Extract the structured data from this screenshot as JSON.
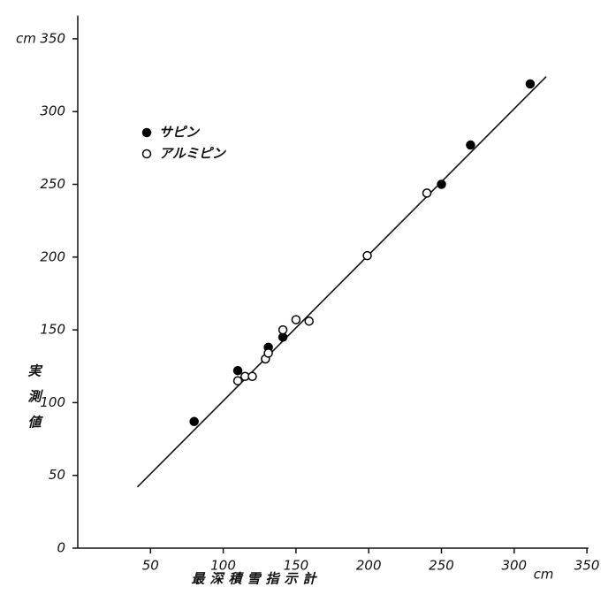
{
  "chart_data": {
    "type": "scatter",
    "y_unit": "cm",
    "x_unit": "cm",
    "x_label": "最深積雪指示計",
    "y_label": "実測値",
    "xlim": [
      0,
      351
    ],
    "ylim": [
      0,
      366
    ],
    "xticks": [
      50,
      100,
      150,
      200,
      250,
      300,
      350
    ],
    "yticks": [
      0,
      50,
      100,
      150,
      200,
      250,
      300,
      350
    ],
    "legend": "top-left",
    "series": [
      {
        "name": "サピン",
        "color": "#000000",
        "filled": true,
        "x": [
          80,
          110,
          131,
          141,
          250,
          270,
          311
        ],
        "values": [
          87,
          122,
          138,
          145,
          250,
          277,
          319
        ]
      },
      {
        "name": "アルミピン",
        "color": "#000000",
        "filled": false,
        "x": [
          110,
          115,
          120,
          129,
          131,
          141,
          150,
          159,
          199,
          240
        ],
        "values": [
          115,
          118,
          118,
          130,
          134,
          150,
          157,
          156,
          201,
          244
        ]
      }
    ],
    "fit_line": {
      "x": [
        41,
        322
      ],
      "values": [
        42,
        324
      ]
    }
  }
}
